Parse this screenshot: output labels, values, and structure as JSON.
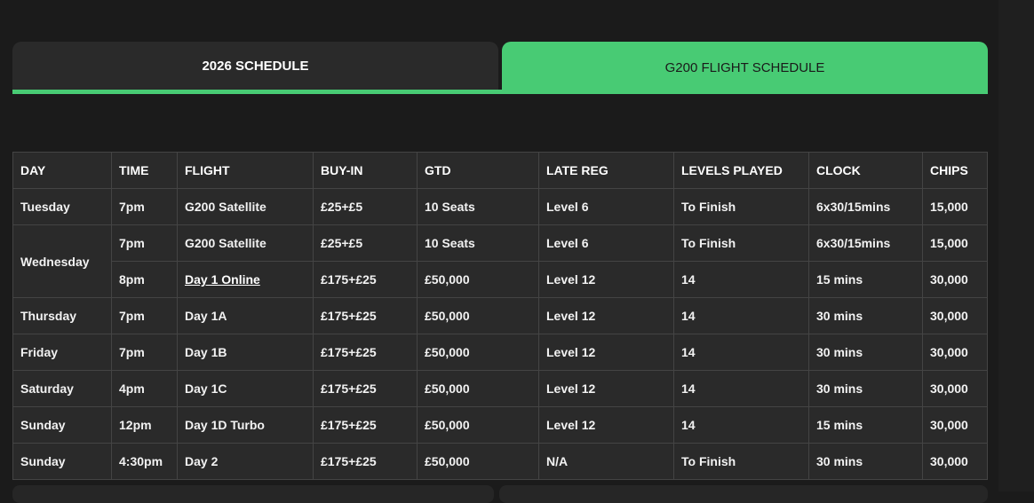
{
  "tabs": [
    {
      "label": "2026 SCHEDULE",
      "active": false
    },
    {
      "label": "G200 FLIGHT SCHEDULE",
      "active": true
    }
  ],
  "colors": {
    "accent": "#48cb74",
    "background": "#1b1b1b",
    "table_bg": "#2a2a2a"
  },
  "table": {
    "columns": [
      "DAY",
      "TIME",
      "FLIGHT",
      "BUY-IN",
      "GTD",
      "LATE REG",
      "LEVELS PLAYED",
      "CLOCK",
      "CHIPS"
    ],
    "rows": [
      {
        "day": "Tuesday",
        "cells": [
          "7pm",
          "G200 Satellite",
          "£25+£5",
          "10 Seats",
          "Level 6",
          "To Finish",
          "6x30/15mins",
          "15,000"
        ]
      },
      {
        "day": "Wednesday",
        "day_rowspan": 2,
        "cells": [
          "7pm",
          "G200 Satellite",
          "£25+£5",
          "10 Seats",
          "Level 6",
          "To Finish",
          "6x30/15mins",
          "15,000"
        ]
      },
      {
        "day": null,
        "cells": [
          "8pm",
          "Day 1 Online",
          "£175+£25",
          "£50,000",
          "Level 12",
          "14",
          "15 mins",
          "30,000"
        ],
        "link_col": 1
      },
      {
        "day": "Thursday",
        "cells": [
          "7pm",
          "Day 1A",
          "£175+£25",
          "£50,000",
          "Level 12",
          "14",
          "30 mins",
          "30,000"
        ]
      },
      {
        "day": "Friday",
        "cells": [
          "7pm",
          "Day 1B",
          "£175+£25",
          "£50,000",
          "Level 12",
          "14",
          "30 mins",
          "30,000"
        ]
      },
      {
        "day": "Saturday",
        "cells": [
          "4pm",
          "Day 1C",
          "£175+£25",
          "£50,000",
          "Level 12",
          "14",
          "30 mins",
          "30,000"
        ]
      },
      {
        "day": "Sunday",
        "cells": [
          "12pm",
          "Day 1D Turbo",
          "£175+£25",
          "£50,000",
          "Level 12",
          "14",
          "15 mins",
          "30,000"
        ]
      },
      {
        "day": "Sunday",
        "cells": [
          "4:30pm",
          "Day 2",
          "£175+£25",
          "£50,000",
          "N/A",
          "To Finish",
          "30 mins",
          "30,000"
        ]
      }
    ]
  }
}
